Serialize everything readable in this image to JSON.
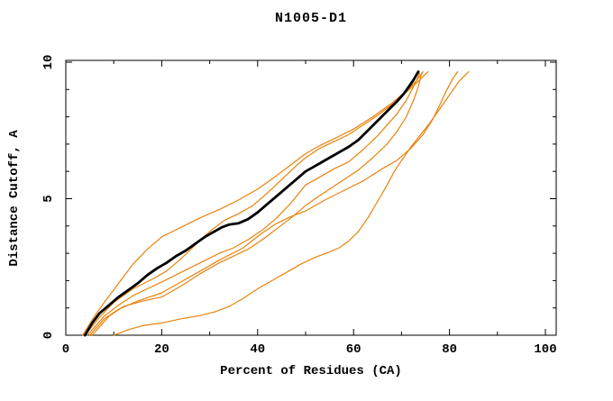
{
  "title": "N1005-D1",
  "chart_data": {
    "type": "line",
    "title": "N1005-D1",
    "xlabel": "Percent of Residues (CA)",
    "ylabel": "Distance Cutoff, A",
    "xlim": [
      0,
      102.3
    ],
    "ylim": [
      0,
      10.07
    ],
    "x_major_ticks": [
      0,
      20,
      40,
      60,
      80,
      100
    ],
    "x_minor_ticks": [
      10,
      30,
      50,
      70,
      90
    ],
    "y_major_ticks": [
      0,
      5,
      10
    ],
    "y_minor_ticks": [
      1,
      2,
      3,
      4,
      6,
      7,
      8,
      9
    ],
    "grid": false,
    "legend_position": "none",
    "frame": "full-box-mirrored-inward-ticks",
    "colors": {
      "model_orange": "#e8820c",
      "main_black": "#000000"
    },
    "series": [
      {
        "name": "orange-model-1",
        "color": "#e8820c",
        "width": 1.2,
        "points": [
          [
            3.5,
            0
          ],
          [
            6,
            0.7
          ],
          [
            8,
            1.2
          ],
          [
            11,
            1.9
          ],
          [
            14,
            2.6
          ],
          [
            17,
            3.15
          ],
          [
            20,
            3.6
          ],
          [
            24,
            3.95
          ],
          [
            28,
            4.3
          ],
          [
            32,
            4.6
          ],
          [
            36,
            4.95
          ],
          [
            40,
            5.35
          ],
          [
            44,
            5.85
          ],
          [
            47,
            6.25
          ],
          [
            50,
            6.65
          ],
          [
            53,
            6.95
          ],
          [
            56,
            7.2
          ],
          [
            60,
            7.55
          ],
          [
            64,
            8.0
          ],
          [
            68,
            8.5
          ],
          [
            71,
            8.95
          ],
          [
            73,
            9.3
          ],
          [
            74.5,
            9.65
          ]
        ]
      },
      {
        "name": "orange-model-2",
        "color": "#e8820c",
        "width": 1.2,
        "points": [
          [
            4,
            0
          ],
          [
            7,
            0.65
          ],
          [
            10,
            1.2
          ],
          [
            14,
            1.7
          ],
          [
            18,
            2.05
          ],
          [
            21,
            2.35
          ],
          [
            24,
            2.8
          ],
          [
            27,
            3.3
          ],
          [
            30,
            3.8
          ],
          [
            33,
            4.2
          ],
          [
            36,
            4.45
          ],
          [
            39,
            4.75
          ],
          [
            42,
            5.2
          ],
          [
            45,
            5.7
          ],
          [
            48,
            6.2
          ],
          [
            50,
            6.5
          ],
          [
            53,
            6.85
          ],
          [
            56,
            7.1
          ],
          [
            59,
            7.35
          ],
          [
            62,
            7.7
          ],
          [
            65,
            8.05
          ],
          [
            68,
            8.45
          ],
          [
            71,
            8.9
          ],
          [
            73.5,
            9.3
          ],
          [
            75.5,
            9.65
          ]
        ]
      },
      {
        "name": "orange-model-3",
        "color": "#e8820c",
        "width": 1.2,
        "points": [
          [
            4.5,
            0
          ],
          [
            8,
            0.7
          ],
          [
            11,
            1.1
          ],
          [
            14,
            1.45
          ],
          [
            17,
            1.7
          ],
          [
            20,
            1.95
          ],
          [
            24,
            2.3
          ],
          [
            28,
            2.65
          ],
          [
            32,
            3.0
          ],
          [
            35,
            3.2
          ],
          [
            38,
            3.5
          ],
          [
            41,
            3.85
          ],
          [
            44,
            4.3
          ],
          [
            47,
            4.85
          ],
          [
            50,
            5.5
          ],
          [
            53,
            5.8
          ],
          [
            56,
            6.1
          ],
          [
            59,
            6.35
          ],
          [
            62,
            6.8
          ],
          [
            65,
            7.3
          ],
          [
            67,
            7.7
          ],
          [
            69,
            8.1
          ],
          [
            71,
            8.6
          ],
          [
            72.5,
            9.1
          ],
          [
            73.8,
            9.6
          ]
        ]
      },
      {
        "name": "orange-model-4",
        "color": "#e8820c",
        "width": 1.2,
        "points": [
          [
            5,
            0
          ],
          [
            8,
            0.6
          ],
          [
            11,
            0.95
          ],
          [
            15,
            1.25
          ],
          [
            20,
            1.55
          ],
          [
            24,
            1.95
          ],
          [
            28,
            2.35
          ],
          [
            32,
            2.75
          ],
          [
            37,
            3.2
          ],
          [
            41,
            3.75
          ],
          [
            44,
            4.1
          ],
          [
            47,
            4.35
          ],
          [
            50,
            4.55
          ],
          [
            54,
            4.95
          ],
          [
            58,
            5.3
          ],
          [
            62,
            5.65
          ],
          [
            66,
            6.1
          ],
          [
            69,
            6.4
          ],
          [
            72,
            6.85
          ],
          [
            74.5,
            7.35
          ],
          [
            76.5,
            7.9
          ],
          [
            78,
            8.45
          ],
          [
            79.5,
            9.0
          ],
          [
            80.7,
            9.4
          ],
          [
            81.7,
            9.65
          ]
        ]
      },
      {
        "name": "orange-model-5",
        "color": "#e8820c",
        "width": 1.2,
        "points": [
          [
            5.5,
            0
          ],
          [
            9,
            0.7
          ],
          [
            12,
            1.05
          ],
          [
            16,
            1.25
          ],
          [
            20,
            1.4
          ],
          [
            24,
            1.8
          ],
          [
            28,
            2.25
          ],
          [
            32,
            2.65
          ],
          [
            35,
            2.9
          ],
          [
            38,
            3.15
          ],
          [
            41,
            3.5
          ],
          [
            44,
            3.9
          ],
          [
            47,
            4.3
          ],
          [
            50,
            4.75
          ],
          [
            52,
            5.0
          ],
          [
            55,
            5.35
          ],
          [
            58,
            5.7
          ],
          [
            61,
            6.05
          ],
          [
            64,
            6.5
          ],
          [
            67,
            7.0
          ],
          [
            69,
            7.45
          ],
          [
            71,
            8.0
          ],
          [
            72.5,
            8.6
          ],
          [
            73.5,
            9.1
          ],
          [
            74.2,
            9.6
          ]
        ]
      },
      {
        "name": "orange-model-6-bulge",
        "color": "#e8820c",
        "width": 1.2,
        "points": [
          [
            10,
            0
          ],
          [
            13,
            0.2
          ],
          [
            16,
            0.35
          ],
          [
            20,
            0.45
          ],
          [
            24,
            0.6
          ],
          [
            28,
            0.72
          ],
          [
            31,
            0.85
          ],
          [
            34,
            1.05
          ],
          [
            37,
            1.35
          ],
          [
            40,
            1.7
          ],
          [
            43,
            2.0
          ],
          [
            46,
            2.3
          ],
          [
            49,
            2.6
          ],
          [
            52,
            2.85
          ],
          [
            55,
            3.05
          ],
          [
            57,
            3.2
          ],
          [
            59,
            3.45
          ],
          [
            61,
            3.8
          ],
          [
            63,
            4.3
          ],
          [
            65,
            4.9
          ],
          [
            67,
            5.5
          ],
          [
            68.5,
            6.0
          ],
          [
            70,
            6.4
          ],
          [
            72,
            6.9
          ],
          [
            74,
            7.35
          ],
          [
            76,
            7.8
          ],
          [
            78,
            8.3
          ],
          [
            80,
            8.8
          ],
          [
            82,
            9.3
          ],
          [
            84,
            9.65
          ]
        ]
      },
      {
        "name": "black-main-curve",
        "color": "#000000",
        "width": 2.8,
        "points": [
          [
            4,
            0
          ],
          [
            5.5,
            0.45
          ],
          [
            7,
            0.8
          ],
          [
            9,
            1.1
          ],
          [
            11,
            1.4
          ],
          [
            13,
            1.65
          ],
          [
            15,
            1.9
          ],
          [
            17,
            2.2
          ],
          [
            19,
            2.45
          ],
          [
            21,
            2.65
          ],
          [
            23,
            2.9
          ],
          [
            25,
            3.1
          ],
          [
            27,
            3.35
          ],
          [
            29,
            3.6
          ],
          [
            31,
            3.8
          ],
          [
            32.5,
            3.95
          ],
          [
            34,
            4.05
          ],
          [
            36,
            4.1
          ],
          [
            38,
            4.25
          ],
          [
            40,
            4.5
          ],
          [
            42,
            4.8
          ],
          [
            44,
            5.1
          ],
          [
            46,
            5.4
          ],
          [
            48,
            5.7
          ],
          [
            50,
            6.0
          ],
          [
            51.5,
            6.15
          ],
          [
            53,
            6.3
          ],
          [
            55,
            6.5
          ],
          [
            57,
            6.7
          ],
          [
            59,
            6.9
          ],
          [
            61,
            7.15
          ],
          [
            63,
            7.5
          ],
          [
            65,
            7.85
          ],
          [
            67,
            8.2
          ],
          [
            69,
            8.55
          ],
          [
            70.5,
            8.85
          ],
          [
            71.5,
            9.1
          ],
          [
            72.5,
            9.35
          ],
          [
            73.5,
            9.65
          ]
        ]
      }
    ]
  }
}
